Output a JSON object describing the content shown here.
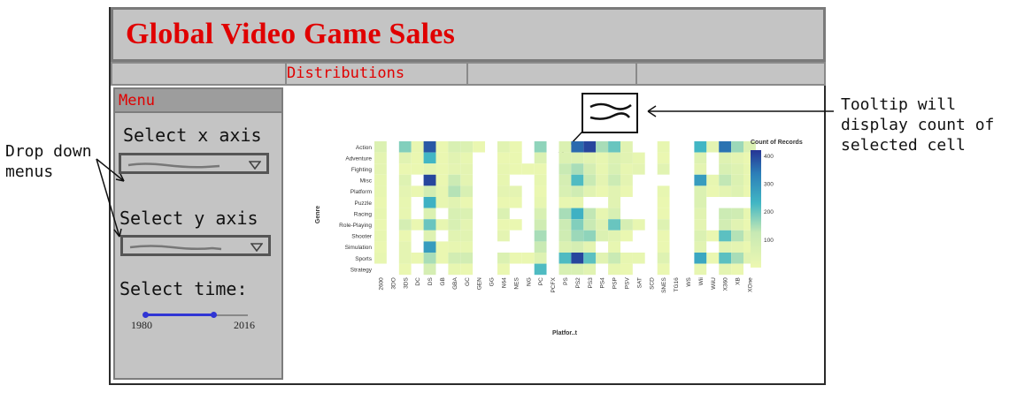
{
  "app": {
    "title": "Global Video Game Sales"
  },
  "tabs": [
    {
      "label": "Distributions"
    },
    {
      "label": ""
    },
    {
      "label": ""
    },
    {
      "label": ""
    }
  ],
  "sidebar": {
    "menu_label": "Menu",
    "x_axis_label": "Select x axis",
    "y_axis_label": "Select y axis",
    "time_label": "Select time:",
    "time_min": "1980",
    "time_max": "2016",
    "time_selected_end_fraction": 0.67
  },
  "annotations": {
    "dropdown_note_line1": "Drop down",
    "dropdown_note_line2": "menus",
    "tooltip_note_line1": "Tooltip will",
    "tooltip_note_line2": "display count of",
    "tooltip_note_line3": "selected cell"
  },
  "colors": {
    "title": "#e00000",
    "panel": "#c4c4c4",
    "slider": "#3035d4"
  },
  "chart_data": {
    "type": "heatmap",
    "xlabel": "Platfor..t",
    "ylabel": "Genre",
    "legend_title": "Count of Records",
    "legend_ticks": [
      400,
      300,
      200,
      100
    ],
    "legend_range": [
      0,
      420
    ],
    "legend_position": "right",
    "x": [
      "2600",
      "3DO",
      "3DS",
      "DC",
      "DS",
      "GB",
      "GBA",
      "GC",
      "GEN",
      "GG",
      "N64",
      "NES",
      "NG",
      "PC",
      "PCFX",
      "PS",
      "PS2",
      "PS3",
      "PS4",
      "PSP",
      "PSV",
      "SAT",
      "SCD",
      "SNES",
      "TG16",
      "WS",
      "Wii",
      "WiiU",
      "X360",
      "XB",
      "XOne"
    ],
    "y": [
      "Action",
      "Adventure",
      "Fighting",
      "Misc",
      "Platform",
      "Puzzle",
      "Racing",
      "Role-Playing",
      "Shooter",
      "Simulation",
      "Sports",
      "Strategy"
    ],
    "values": [
      [
        60,
        0,
        180,
        15,
        380,
        10,
        70,
        60,
        10,
        0,
        40,
        10,
        0,
        170,
        0,
        60,
        360,
        400,
        150,
        200,
        40,
        0,
        0,
        20,
        0,
        0,
        230,
        30,
        350,
        160,
        60
      ],
      [
        30,
        0,
        40,
        10,
        230,
        10,
        40,
        20,
        0,
        0,
        10,
        10,
        0,
        60,
        0,
        60,
        60,
        40,
        20,
        60,
        40,
        20,
        0,
        10,
        0,
        0,
        50,
        0,
        50,
        30,
        10
      ],
      [
        30,
        0,
        10,
        10,
        30,
        10,
        30,
        30,
        0,
        0,
        20,
        10,
        10,
        10,
        0,
        120,
        150,
        80,
        20,
        70,
        20,
        30,
        0,
        40,
        0,
        0,
        30,
        0,
        70,
        50,
        20
      ],
      [
        20,
        0,
        50,
        0,
        400,
        10,
        110,
        30,
        0,
        0,
        20,
        0,
        0,
        20,
        0,
        80,
        220,
        120,
        30,
        110,
        30,
        0,
        0,
        0,
        0,
        0,
        280,
        20,
        130,
        60,
        20
      ],
      [
        20,
        0,
        30,
        10,
        90,
        20,
        140,
        70,
        0,
        0,
        30,
        30,
        0,
        10,
        0,
        70,
        100,
        40,
        10,
        40,
        10,
        0,
        0,
        20,
        0,
        0,
        60,
        10,
        30,
        50,
        10
      ],
      [
        10,
        0,
        20,
        0,
        240,
        20,
        40,
        10,
        0,
        0,
        10,
        10,
        0,
        20,
        0,
        20,
        20,
        0,
        0,
        40,
        0,
        0,
        0,
        10,
        0,
        0,
        60,
        0,
        0,
        0,
        0
      ],
      [
        20,
        0,
        20,
        0,
        60,
        0,
        70,
        60,
        0,
        0,
        60,
        0,
        0,
        70,
        0,
        150,
        240,
        130,
        20,
        70,
        0,
        0,
        0,
        10,
        0,
        0,
        40,
        0,
        110,
        100,
        20
      ],
      [
        10,
        0,
        80,
        10,
        200,
        20,
        70,
        30,
        0,
        0,
        10,
        10,
        0,
        100,
        0,
        110,
        180,
        120,
        50,
        200,
        80,
        20,
        0,
        50,
        0,
        0,
        30,
        0,
        90,
        40,
        10
      ],
      [
        20,
        0,
        10,
        0,
        50,
        0,
        40,
        40,
        0,
        0,
        30,
        0,
        0,
        150,
        0,
        100,
        160,
        170,
        60,
        40,
        10,
        0,
        0,
        10,
        0,
        0,
        60,
        10,
        210,
        140,
        50
      ],
      [
        10,
        0,
        30,
        0,
        280,
        10,
        20,
        20,
        0,
        0,
        0,
        0,
        0,
        120,
        0,
        60,
        80,
        30,
        0,
        20,
        0,
        0,
        0,
        10,
        0,
        0,
        40,
        0,
        40,
        30,
        10
      ],
      [
        20,
        0,
        30,
        10,
        150,
        10,
        90,
        90,
        0,
        0,
        60,
        10,
        10,
        50,
        0,
        220,
        400,
        210,
        40,
        120,
        20,
        20,
        0,
        50,
        0,
        0,
        260,
        10,
        210,
        150,
        40
      ],
      [
        0,
        0,
        10,
        0,
        80,
        0,
        20,
        10,
        0,
        0,
        10,
        0,
        0,
        220,
        0,
        70,
        70,
        40,
        0,
        20,
        10,
        0,
        0,
        10,
        0,
        0,
        20,
        0,
        30,
        10,
        0
      ]
    ]
  }
}
